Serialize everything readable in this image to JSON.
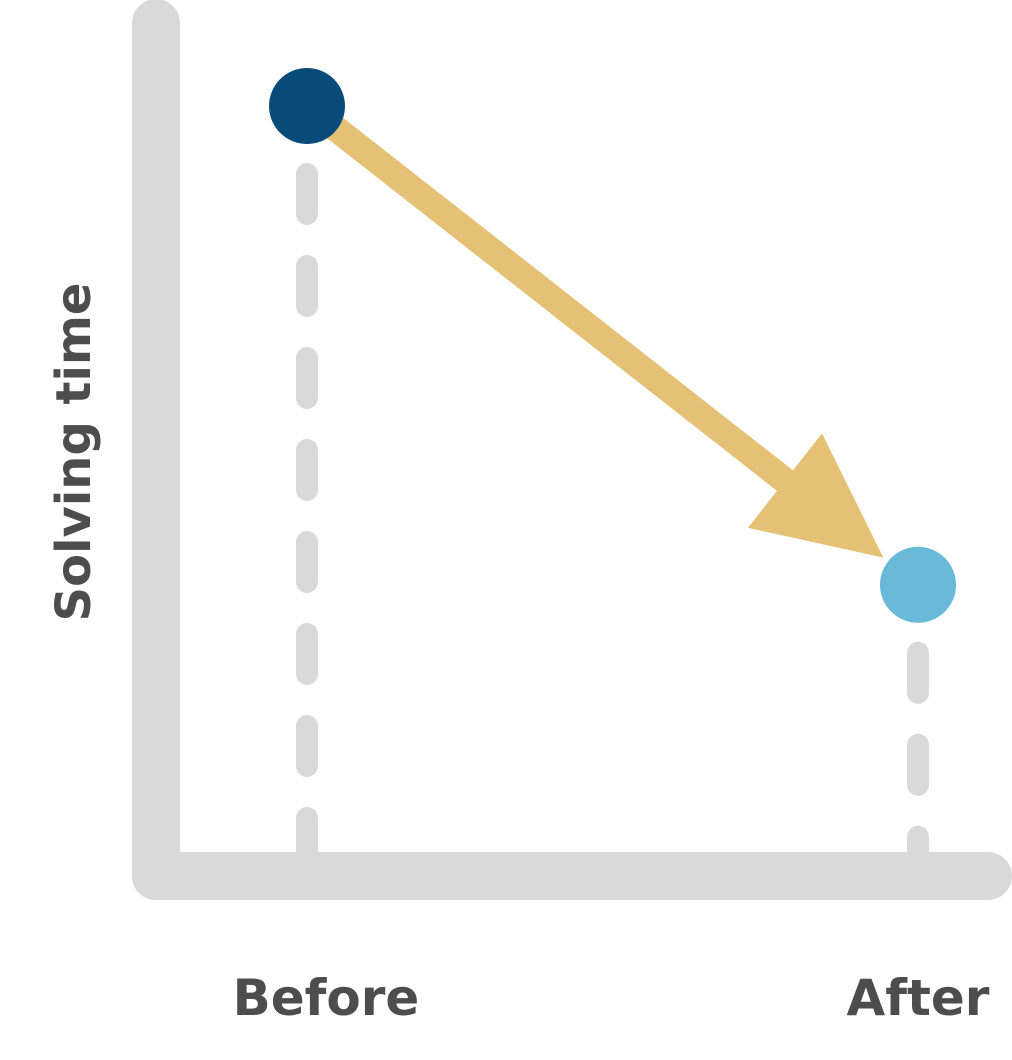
{
  "chart_data": {
    "type": "scatter",
    "title": "",
    "xlabel": "",
    "ylabel": "Solving time",
    "categories": [
      "Before",
      "After"
    ],
    "ylim": [
      0,
      100
    ],
    "grid": false,
    "points": [
      {
        "category": "Before",
        "y": 90,
        "color": "#084a78"
      },
      {
        "category": "After",
        "y": 33,
        "color": "#69b9d8"
      }
    ],
    "arrow": {
      "from": "Before",
      "to": "After",
      "color": "#e4c174"
    }
  },
  "colors": {
    "axis": "#d9d9d9",
    "text": "#4d4d4d",
    "guide": "#d9d9d9"
  }
}
